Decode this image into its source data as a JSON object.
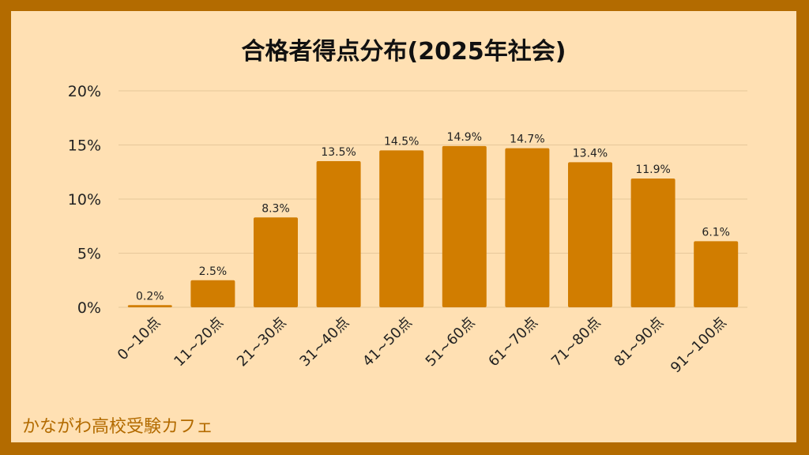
{
  "chart_data": {
    "type": "bar",
    "title": "合格者得点分布(2025年社会)",
    "categories": [
      "0~10点",
      "11~20点",
      "21~30点",
      "31~40点",
      "41~50点",
      "51~60点",
      "61~70点",
      "71~80点",
      "81~90点",
      "91~100点"
    ],
    "values": [
      0.2,
      2.5,
      8.3,
      13.5,
      14.5,
      14.9,
      14.7,
      13.4,
      11.9,
      6.1
    ],
    "value_labels": [
      "0.2%",
      "2.5%",
      "8.3%",
      "13.5%",
      "14.5%",
      "14.9%",
      "14.7%",
      "13.4%",
      "11.9%",
      "6.1%"
    ],
    "y_ticks": [
      0,
      5,
      10,
      15,
      20
    ],
    "y_tick_labels": [
      "0%",
      "5%",
      "10%",
      "15%",
      "20%"
    ],
    "ylim": [
      0,
      20
    ],
    "grid": true,
    "xlabel": "",
    "ylabel": ""
  },
  "colors": {
    "bar": "#d17d00",
    "background": "#ffe0b3",
    "frame": "#b36b00",
    "grid": "#e6c79a"
  },
  "footer": {
    "brand": "かながわ高校受験カフェ"
  }
}
